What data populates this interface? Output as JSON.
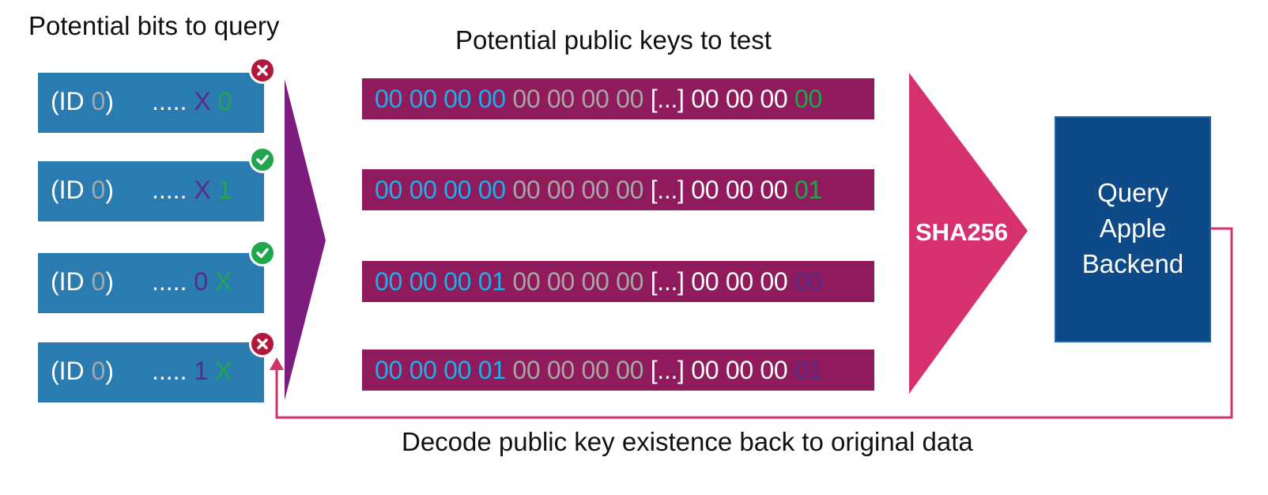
{
  "headings": {
    "bits": "Potential bits to query",
    "keys": "Potential public keys to test",
    "decode": "Decode public key existence back to original data"
  },
  "bits": [
    {
      "id_open": "(ID ",
      "id_num": "0",
      "id_close": ")",
      "dots": ".....",
      "a": "X",
      "b": "0",
      "status": "rejected"
    },
    {
      "id_open": "(ID ",
      "id_num": "0",
      "id_close": ")",
      "dots": ".....",
      "a": "X",
      "b": "1",
      "status": "confirmed"
    },
    {
      "id_open": "(ID ",
      "id_num": "0",
      "id_close": ")",
      "dots": ".....",
      "a": "0",
      "b": "X",
      "status": "confirmed"
    },
    {
      "id_open": "(ID ",
      "id_num": "0",
      "id_close": ")",
      "dots": ".....",
      "a": "1",
      "b": "X",
      "status": "rejected"
    }
  ],
  "keys": [
    {
      "blue": "00 00 00 00",
      "gray": "00 00 00 00",
      "mid": "[...] 00 00 00",
      "last": "00",
      "last_color": "green"
    },
    {
      "blue": "00 00 00 00",
      "gray": "00 00 00 00",
      "mid": "[...] 00 00 00",
      "last": "01",
      "last_color": "green"
    },
    {
      "blue": "00 00 00 01",
      "gray": "00 00 00 00",
      "mid": "[...] 00 00 00",
      "last": "00",
      "last_color": "purple"
    },
    {
      "blue": "00 00 00 01",
      "gray": "00 00 00 00",
      "mid": "[...] 00 00 00",
      "last": "01",
      "last_color": "purple"
    }
  ],
  "hash": {
    "label": "SHA256"
  },
  "backend": {
    "line1": "Query",
    "line2": "Apple",
    "line3": "Backend"
  },
  "colors": {
    "bit_box": "#2a7cb0",
    "key_bar": "#8f1b5c",
    "fan_arrow": "#7c1d7e",
    "hash_arrow": "#d6306f",
    "backend": "#0d4a87",
    "feedback_line": "#d6306f",
    "badge_red": "#b2183c",
    "badge_green": "#22a64d"
  }
}
